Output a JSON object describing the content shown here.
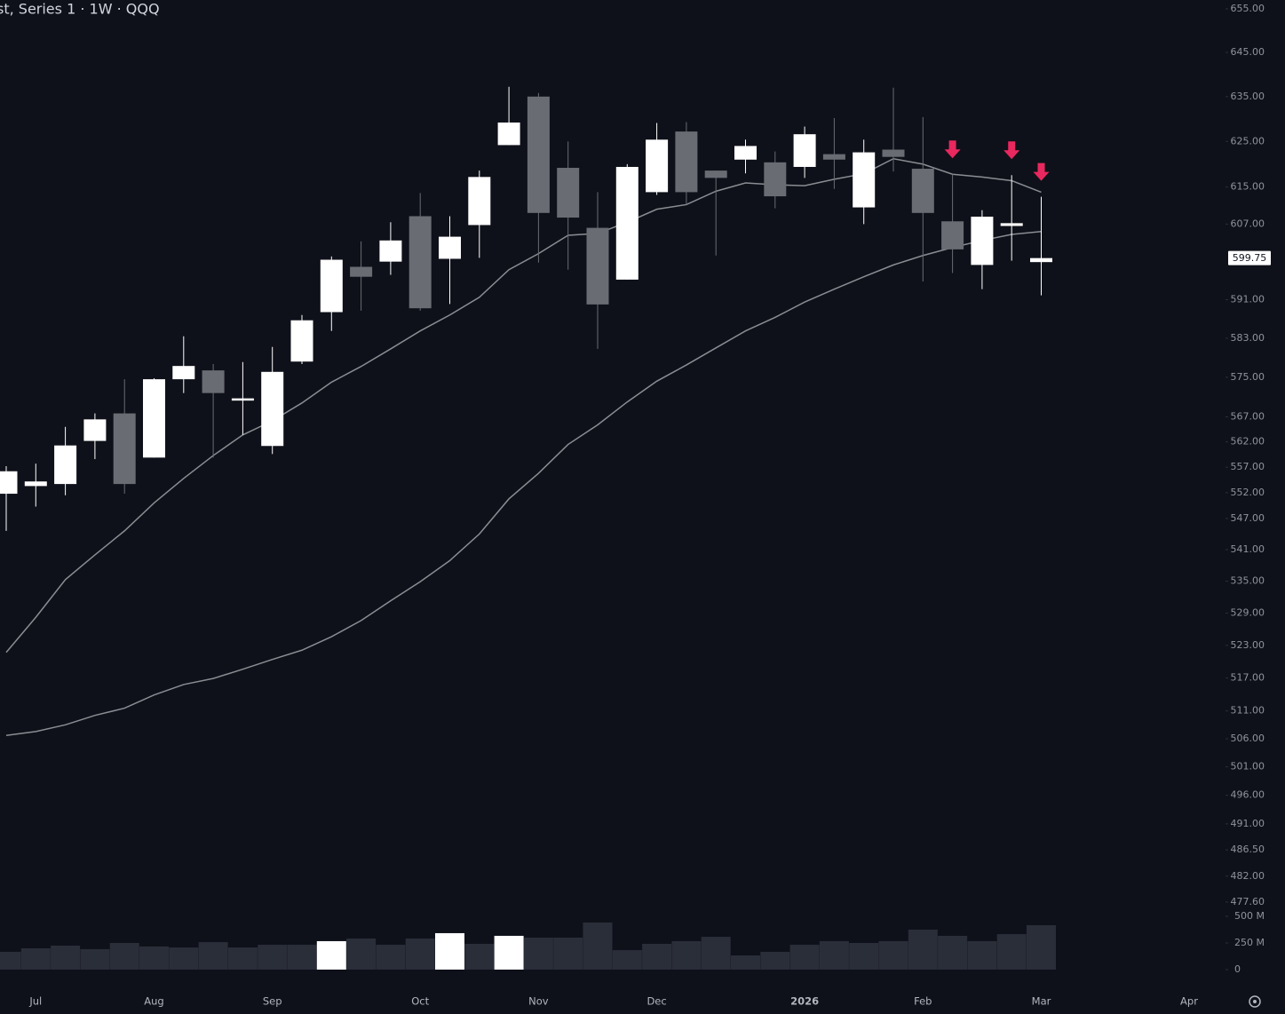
{
  "chart_data": {
    "type": "candlestick",
    "title": "st, Series 1 · 1W · QQQ",
    "log_scale": true,
    "categories": [
      null,
      "Jul",
      null,
      null,
      null,
      "Aug",
      null,
      null,
      null,
      "Sep",
      null,
      null,
      null,
      null,
      "Oct",
      null,
      null,
      null,
      "Nov",
      null,
      null,
      null,
      "Dec",
      null,
      null,
      null,
      null,
      "2026",
      null,
      null,
      null,
      "Feb",
      null,
      null,
      null,
      "Mar",
      null,
      null,
      null,
      null,
      "Apr"
    ],
    "open": [
      551.8,
      553.3,
      553.7,
      562.2,
      567.7,
      558.9,
      574.6,
      576.4,
      570.3,
      561.2,
      578.2,
      588.4,
      597.9,
      599.0,
      608.7,
      599.6,
      606.8,
      624.2,
      635.0,
      619.2,
      606.2,
      595.2,
      613.9,
      627.2,
      618.6,
      621.0,
      620.4,
      619.4,
      622.2,
      610.6,
      623.2,
      619.0,
      607.6,
      598.3,
      606.6,
      598.9,
      null,
      null,
      null,
      null,
      null
    ],
    "high": [
      557.2,
      557.7,
      565.0,
      567.7,
      574.6,
      574.8,
      583.4,
      577.7,
      578.1,
      581.2,
      587.8,
      600.1,
      603.3,
      607.4,
      613.7,
      608.7,
      618.6,
      637.2,
      635.8,
      625.0,
      613.9,
      620.0,
      629.1,
      629.3,
      618.6,
      625.4,
      622.8,
      628.3,
      630.2,
      625.4,
      637.0,
      630.4,
      617.8,
      610.0,
      617.6,
      612.9,
      null,
      null,
      null,
      null,
      null
    ],
    "low": [
      544.6,
      549.3,
      551.5,
      558.6,
      551.8,
      558.9,
      571.8,
      558.9,
      563.4,
      559.6,
      577.7,
      584.5,
      588.7,
      596.2,
      588.7,
      590.1,
      599.8,
      624.2,
      598.8,
      597.3,
      580.8,
      595.2,
      613.3,
      611.2,
      600.3,
      618.0,
      610.4,
      617.0,
      614.6,
      607.0,
      618.4,
      594.8,
      596.6,
      593.2,
      599.2,
      591.9,
      null,
      null,
      null,
      null,
      null
    ],
    "close": [
      556.2,
      554.2,
      561.3,
      566.5,
      553.7,
      574.6,
      577.3,
      571.8,
      570.5,
      576.1,
      586.7,
      599.4,
      595.8,
      603.5,
      589.2,
      604.3,
      617.2,
      629.2,
      609.4,
      608.4,
      590.0,
      619.4,
      625.4,
      613.9,
      617.0,
      624.0,
      613.0,
      626.6,
      621.0,
      622.6,
      621.6,
      609.4,
      601.6,
      608.6,
      607.2,
      599.75,
      null,
      null,
      null,
      null,
      null
    ],
    "up_color": "#ffffff",
    "down_color": "#6a6c74",
    "lines": [
      {
        "color": "#8b8d93",
        "values": [
          521.7,
          528.2,
          535.3,
          540.0,
          544.6,
          550.0,
          554.8,
          559.3,
          563.4,
          566.2,
          569.8,
          574.0,
          577.2,
          580.8,
          584.5,
          587.8,
          591.5,
          597.3,
          600.7,
          604.6,
          605.0,
          607.4,
          610.2,
          611.2,
          614.1,
          615.9,
          615.5,
          615.3,
          616.7,
          617.9,
          621.2,
          620.0,
          617.8,
          617.2,
          616.4,
          613.9,
          null,
          null,
          null,
          null,
          null
        ]
      },
      {
        "color": "#8b8d93",
        "values": [
          506.6,
          507.3,
          508.5,
          510.2,
          511.5,
          513.9,
          515.8,
          516.9,
          518.6,
          520.4,
          522.1,
          524.6,
          527.6,
          531.3,
          534.9,
          538.9,
          544.0,
          550.8,
          555.8,
          561.5,
          565.4,
          570.0,
          574.2,
          577.5,
          581.0,
          584.5,
          587.3,
          590.5,
          593.2,
          595.8,
          598.3,
          600.3,
          602.0,
          603.5,
          604.8,
          605.4,
          null,
          null,
          null,
          null,
          null
        ]
      }
    ],
    "down_arrows": [
      32,
      34,
      35
    ],
    "arrow_color": "#e8285e",
    "ylim": [
      477.6,
      655
    ],
    "yticks": [
      {
        "value": 655,
        "label": "655.00"
      },
      {
        "value": 645,
        "label": "645.00"
      },
      {
        "value": 635,
        "label": "635.00"
      },
      {
        "value": 625,
        "label": "625.00"
      },
      {
        "value": 615,
        "label": "615.00"
      },
      {
        "value": 607,
        "label": "607.00"
      },
      {
        "value": 591,
        "label": "591.00"
      },
      {
        "value": 583,
        "label": "583.00"
      },
      {
        "value": 575,
        "label": "575.00"
      },
      {
        "value": 567,
        "label": "567.00"
      },
      {
        "value": 562,
        "label": "562.00"
      },
      {
        "value": 557,
        "label": "557.00"
      },
      {
        "value": 552,
        "label": "552.00"
      },
      {
        "value": 547,
        "label": "547.00"
      },
      {
        "value": 541,
        "label": "541.00"
      },
      {
        "value": 535,
        "label": "535.00"
      },
      {
        "value": 529,
        "label": "529.00"
      },
      {
        "value": 523,
        "label": "523.00"
      },
      {
        "value": 517,
        "label": "517.00"
      },
      {
        "value": 511,
        "label": "511.00"
      },
      {
        "value": 506,
        "label": "506.00"
      },
      {
        "value": 501,
        "label": "501.00"
      },
      {
        "value": 496,
        "label": "496.00"
      },
      {
        "value": 491,
        "label": "491.00"
      },
      {
        "value": 486.5,
        "label": "486.50"
      },
      {
        "value": 482,
        "label": "482.00"
      },
      {
        "value": 477.6,
        "label": "477.60"
      }
    ],
    "last_price": {
      "value": 599.75,
      "label": "599.75"
    },
    "volume": {
      "values": [
        167,
        200,
        225,
        192,
        250,
        217,
        208,
        258,
        208,
        233,
        233,
        267,
        292,
        233,
        292,
        342,
        242,
        317,
        300,
        300,
        442,
        183,
        242,
        267,
        308,
        133,
        167,
        233,
        267,
        250,
        267,
        375,
        317,
        267,
        333,
        417,
        null,
        null,
        null,
        null,
        null
      ],
      "colors": [
        "#2a2e39",
        "#2a2e39",
        "#2a2e39",
        "#2a2e39",
        "#2a2e39",
        "#2a2e39",
        "#2a2e39",
        "#2a2e39",
        "#2a2e39",
        "#2a2e39",
        "#2a2e39",
        "#ffffff",
        "#2a2e39",
        "#2a2e39",
        "#2a2e39",
        "#ffffff",
        "#2a2e39",
        "#ffffff",
        "#2a2e39",
        "#2a2e39",
        "#2a2e39",
        "#2a2e39",
        "#2a2e39",
        "#2a2e39",
        "#2a2e39",
        "#2a2e39",
        "#2a2e39",
        "#2a2e39",
        "#2a2e39",
        "#2a2e39",
        "#2a2e39",
        "#2a2e39",
        "#2a2e39",
        "#2a2e39",
        "#2a2e39",
        "#2a2e39",
        null,
        null,
        null,
        null,
        null
      ],
      "ylim": [
        0,
        500
      ],
      "yticks": [
        0,
        {
          "value": 250,
          "label": "250 M"
        },
        {
          "value": 500,
          "label": "500 M"
        }
      ]
    }
  }
}
